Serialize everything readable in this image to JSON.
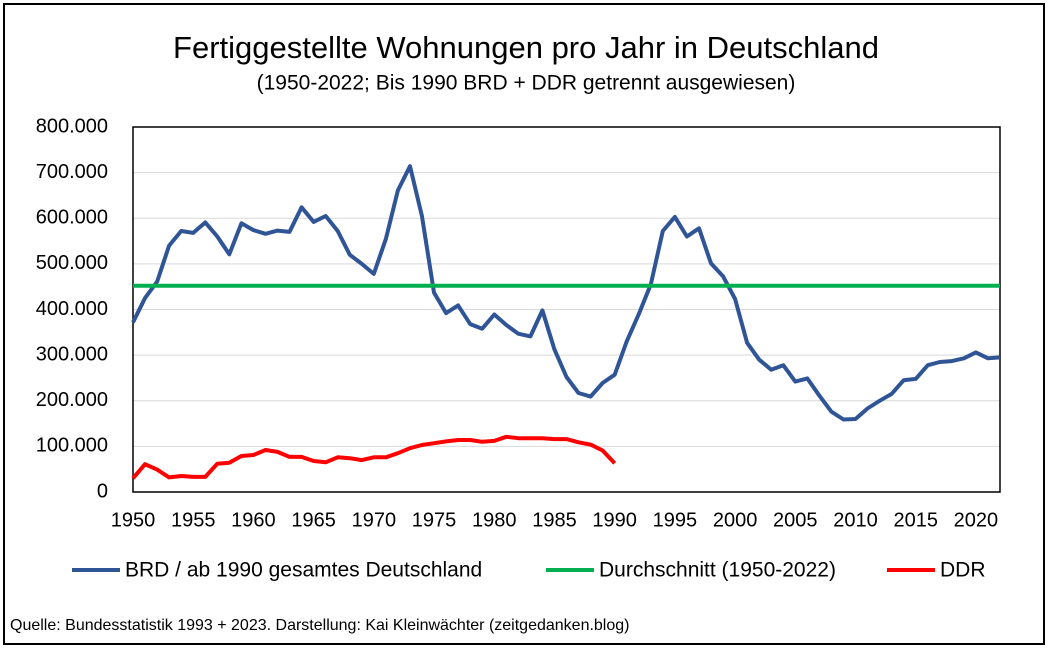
{
  "chart_data": {
    "type": "line",
    "title": "Fertiggestellte Wohnungen pro Jahr in Deutschland",
    "subtitle": "(1950-2022; Bis 1990 BRD + DDR getrennt ausgewiesen)",
    "source": "Quelle: Bundesstatistik 1993 + 2023. Darstellung: Kai Kleinwächter (zeitgedanken.blog)",
    "x": [
      1950,
      1951,
      1952,
      1953,
      1954,
      1955,
      1956,
      1957,
      1958,
      1959,
      1960,
      1961,
      1962,
      1963,
      1964,
      1965,
      1966,
      1967,
      1968,
      1969,
      1970,
      1971,
      1972,
      1973,
      1974,
      1975,
      1976,
      1977,
      1978,
      1979,
      1980,
      1981,
      1982,
      1983,
      1984,
      1985,
      1986,
      1987,
      1988,
      1989,
      1990,
      1991,
      1992,
      1993,
      1994,
      1995,
      1996,
      1997,
      1998,
      1999,
      2000,
      2001,
      2002,
      2003,
      2004,
      2005,
      2006,
      2007,
      2008,
      2009,
      2010,
      2011,
      2012,
      2013,
      2014,
      2015,
      2016,
      2017,
      2018,
      2019,
      2020,
      2021,
      2022
    ],
    "xlim": [
      1950,
      2022
    ],
    "xticks": [
      1950,
      1955,
      1960,
      1965,
      1970,
      1975,
      1980,
      1985,
      1990,
      1995,
      2000,
      2005,
      2010,
      2015,
      2020
    ],
    "ylim": [
      0,
      800000
    ],
    "yticks": [
      0,
      {
        "value": 100000,
        "label": "100.000"
      },
      {
        "value": 200000,
        "label": "200.000"
      },
      {
        "value": 300000,
        "label": "300.000"
      },
      {
        "value": 400000,
        "label": "400.000"
      },
      {
        "value": 500000,
        "label": "500.000"
      },
      {
        "value": 600000,
        "label": "600.000"
      },
      {
        "value": 700000,
        "label": "700.000"
      },
      {
        "value": 800000,
        "label": "800.000"
      }
    ],
    "grid": true,
    "legend": "bottom",
    "series": [
      {
        "name": "BRD / ab 1990 gesamtes Deutschland",
        "color": "#2f5597",
        "values": [
          372000,
          425000,
          461000,
          540000,
          572000,
          568000,
          591000,
          560000,
          521000,
          589000,
          574000,
          566000,
          573000,
          570000,
          624000,
          592000,
          605000,
          572000,
          520000,
          500000,
          478000,
          555000,
          661000,
          714000,
          604000,
          437000,
          392000,
          409000,
          368000,
          358000,
          389000,
          366000,
          347000,
          341000,
          398000,
          312000,
          252000,
          217000,
          209000,
          239000,
          257000,
          330000,
          390000,
          455000,
          572000,
          603000,
          560000,
          578000,
          501000,
          473000,
          423000,
          327000,
          290000,
          268000,
          278000,
          242000,
          249000,
          211000,
          176000,
          159000,
          160000,
          183000,
          200000,
          215000,
          245000,
          248000,
          278000,
          285000,
          287000,
          293000,
          306000,
          293000,
          295000
        ]
      },
      {
        "name": "Durchschnitt (1950-2022)",
        "color": "#00b050",
        "values": [
          452000,
          452000,
          452000,
          452000,
          452000,
          452000,
          452000,
          452000,
          452000,
          452000,
          452000,
          452000,
          452000,
          452000,
          452000,
          452000,
          452000,
          452000,
          452000,
          452000,
          452000,
          452000,
          452000,
          452000,
          452000,
          452000,
          452000,
          452000,
          452000,
          452000,
          452000,
          452000,
          452000,
          452000,
          452000,
          452000,
          452000,
          452000,
          452000,
          452000,
          452000,
          452000,
          452000,
          452000,
          452000,
          452000,
          452000,
          452000,
          452000,
          452000,
          452000,
          452000,
          452000,
          452000,
          452000,
          452000,
          452000,
          452000,
          452000,
          452000,
          452000,
          452000,
          452000,
          452000,
          452000,
          452000,
          452000,
          452000,
          452000,
          452000,
          452000,
          452000,
          452000
        ]
      },
      {
        "name": "DDR",
        "color": "#ff0000",
        "values": [
          30000,
          61000,
          49000,
          32000,
          35000,
          33000,
          33000,
          62000,
          64000,
          79000,
          81000,
          92000,
          88000,
          77000,
          77000,
          68000,
          65000,
          76000,
          74000,
          70000,
          76000,
          76000,
          85000,
          96000,
          103000,
          107000,
          111000,
          114000,
          114000,
          110000,
          112000,
          121000,
          118000,
          118000,
          118000,
          116000,
          116000,
          109000,
          104000,
          91000,
          63000,
          null,
          null,
          null,
          null,
          null,
          null,
          null,
          null,
          null,
          null,
          null,
          null,
          null,
          null,
          null,
          null,
          null,
          null,
          null,
          null,
          null,
          null,
          null,
          null,
          null,
          null,
          null,
          null,
          null,
          null,
          null,
          null
        ]
      }
    ]
  }
}
